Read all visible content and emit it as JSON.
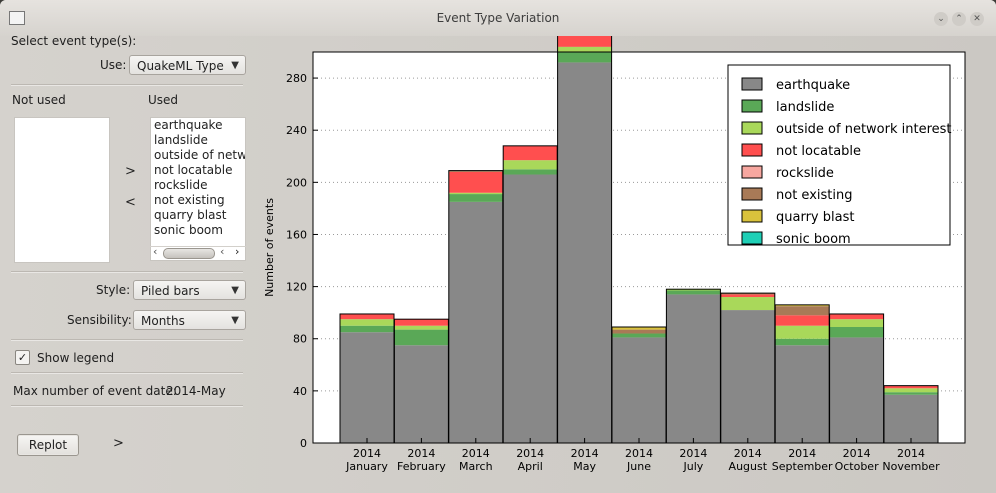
{
  "window": {
    "title": "Event Type Variation",
    "icon": "app-icon",
    "controls": [
      "minimize-icon",
      "maximize-icon",
      "close-icon"
    ]
  },
  "panel": {
    "select_label": "Select event type(s):",
    "use_label": "Use:",
    "use_value": "QuakeML Type",
    "not_used_label": "Not used",
    "used_label": "Used",
    "not_used_items": [],
    "used_items": [
      "earthquake",
      "landslide",
      "outside of network interest",
      "not locatable",
      "rockslide",
      "not existing",
      "quarry blast",
      "sonic boom"
    ],
    "move_right": ">",
    "move_left": "<",
    "style_label": "Style:",
    "style_value": "Piled bars",
    "sensibility_label": "Sensibility:",
    "sensibility_value": "Months",
    "show_legend_label": "Show legend",
    "show_legend_checked": true,
    "max_label": "Max number of event date:",
    "max_value": "2014-May",
    "replot_label": "Replot",
    "expand_label": ">"
  },
  "chart_data": {
    "type": "bar",
    "stacked": true,
    "ylabel": "Number of events",
    "xlabel": "",
    "ylim": [
      0,
      300
    ],
    "yticks": [
      0,
      40,
      80,
      120,
      160,
      200,
      240,
      280
    ],
    "grid": true,
    "legend_position": "top-right",
    "categories": [
      [
        "2014",
        "January"
      ],
      [
        "2014",
        "February"
      ],
      [
        "2014",
        "March"
      ],
      [
        "2014",
        "April"
      ],
      [
        "2014",
        "May"
      ],
      [
        "2014",
        "June"
      ],
      [
        "2014",
        "July"
      ],
      [
        "2014",
        "August"
      ],
      [
        "2014",
        "September"
      ],
      [
        "2014",
        "October"
      ],
      [
        "2014",
        "November"
      ]
    ],
    "series": [
      {
        "name": "earthquake",
        "color": "#888888",
        "values": [
          85,
          75,
          185,
          206,
          292,
          81,
          114,
          102,
          75,
          81,
          37
        ]
      },
      {
        "name": "landslide",
        "color": "#5aa857",
        "values": [
          5,
          12,
          6,
          4,
          8,
          3,
          3,
          0,
          5,
          8,
          2
        ]
      },
      {
        "name": "outside of network interest",
        "color": "#a9d85a",
        "values": [
          5,
          3,
          1,
          7,
          4,
          0,
          1,
          10,
          10,
          6,
          3
        ]
      },
      {
        "name": "not locatable",
        "color": "#ff4f4f",
        "values": [
          4,
          5,
          16,
          11,
          9,
          0,
          0,
          2,
          8,
          4,
          2
        ]
      },
      {
        "name": "rockslide",
        "color": "#f7a7a0",
        "values": [
          0,
          0,
          0,
          0,
          0,
          0,
          0,
          0,
          0,
          0,
          0
        ]
      },
      {
        "name": "not existing",
        "color": "#a87a57",
        "values": [
          0,
          0,
          1,
          0,
          0,
          3,
          0,
          1,
          7,
          0,
          0
        ]
      },
      {
        "name": "quarry blast",
        "color": "#d9c23c",
        "values": [
          0,
          0,
          0,
          0,
          0,
          2,
          0,
          0,
          1,
          0,
          0
        ]
      },
      {
        "name": "sonic boom",
        "color": "#1fcfb6",
        "values": [
          0,
          0,
          0,
          0,
          0,
          0,
          0,
          0,
          0,
          0,
          0
        ]
      }
    ]
  }
}
